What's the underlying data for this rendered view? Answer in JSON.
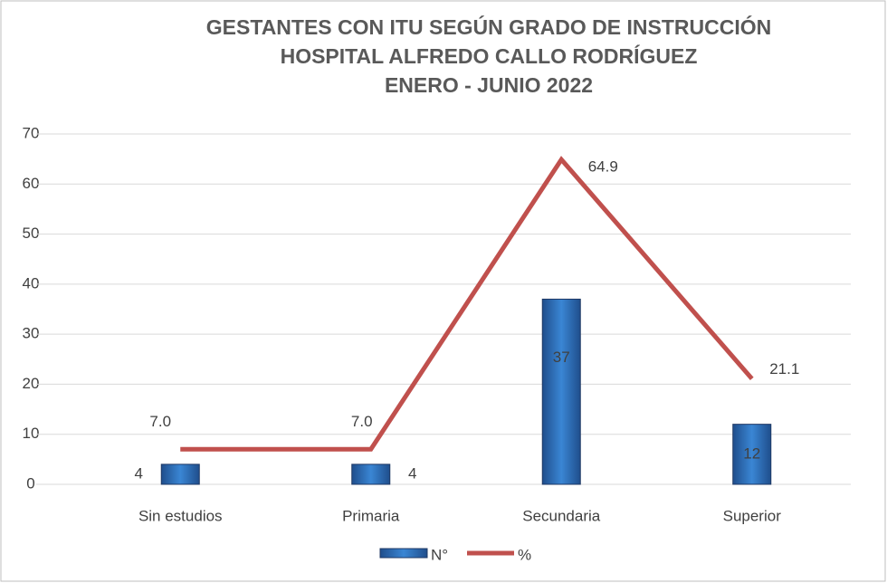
{
  "chart_data": {
    "type": "bar",
    "title": [
      "GESTANTES CON ITU SEGÚN GRADO DE INSTRUCCIÓN",
      "HOSPITAL ALFREDO CALLO RODRÍGUEZ",
      "ENERO - JUNIO 2022"
    ],
    "categories": [
      "Sin estudios",
      "Primaria",
      "Secundaria",
      "Superior"
    ],
    "series": [
      {
        "name": "N°",
        "type": "bar",
        "color": "#2e75b6",
        "values": [
          4,
          4,
          37,
          12
        ]
      },
      {
        "name": "%",
        "type": "line",
        "color": "#c0504d",
        "values": [
          7.0,
          7.0,
          64.9,
          21.1
        ],
        "value_labels": [
          "7.0",
          "7.0",
          "64.9",
          "21.1"
        ]
      }
    ],
    "ylim": [
      0,
      70
    ],
    "yticks": [
      0,
      10,
      20,
      30,
      40,
      50,
      60,
      70
    ],
    "grid": true,
    "legend": "bottom"
  }
}
